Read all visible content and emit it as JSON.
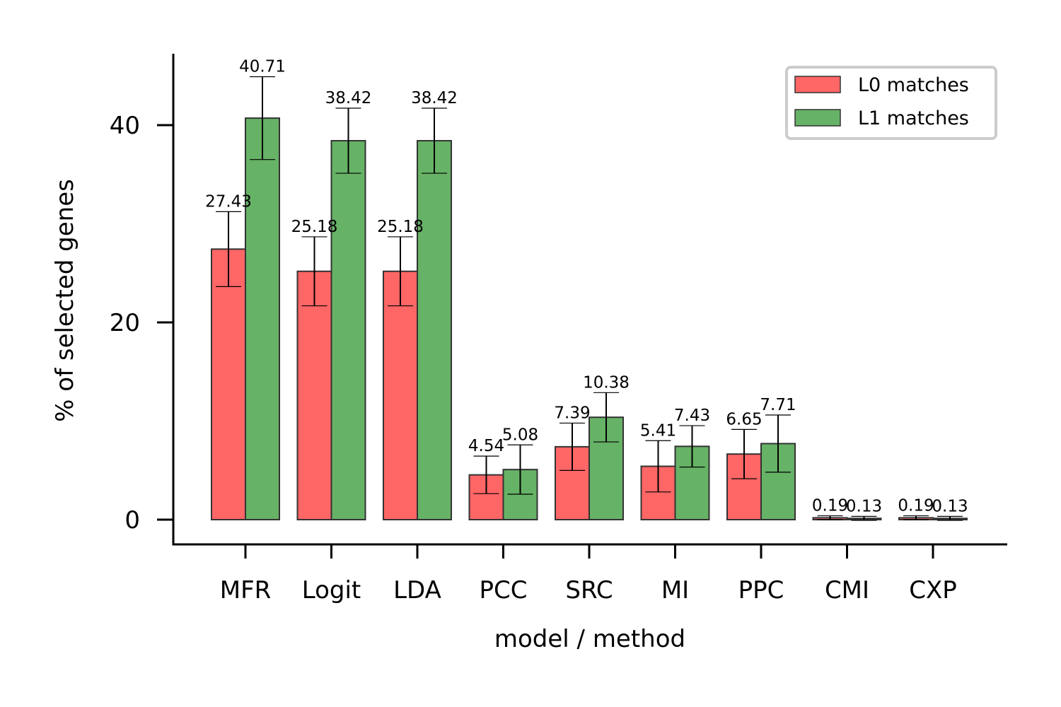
{
  "chart_data": {
    "type": "bar",
    "xlabel": "model / method",
    "ylabel": "% of selected genes",
    "categories": [
      "MFR",
      "Logit",
      "LDA",
      "PCC",
      "SRC",
      "MI",
      "PPC",
      "CMI",
      "CXP"
    ],
    "series": [
      {
        "name": "L0 matches",
        "color": "#ff6666",
        "values": [
          27.43,
          25.18,
          25.18,
          4.54,
          7.39,
          5.41,
          6.65,
          0.19,
          0.19
        ],
        "labels": [
          "27.43",
          "25.18",
          "25.18",
          "4.54",
          "7.39",
          "5.41",
          "6.65",
          "0.19",
          "0.19"
        ],
        "error": [
          3.8,
          3.5,
          3.5,
          1.9,
          2.4,
          2.6,
          2.5,
          0.2,
          0.2
        ]
      },
      {
        "name": "L1 matches",
        "color": "#66b266",
        "values": [
          40.71,
          38.42,
          38.42,
          5.08,
          10.38,
          7.43,
          7.71,
          0.13,
          0.13
        ],
        "labels": [
          "40.71",
          "38.42",
          "38.42",
          "5.08",
          "10.38",
          "7.43",
          "7.71",
          "0.13",
          "0.13"
        ],
        "error": [
          4.2,
          3.3,
          3.3,
          2.5,
          2.5,
          2.1,
          2.9,
          0.2,
          0.2
        ]
      }
    ],
    "ylim": [
      -2.5,
      47.5
    ],
    "yticks": [
      0,
      20,
      40
    ],
    "grid": false,
    "legend_position": "top-right",
    "bar_edge_color": "#333333"
  }
}
